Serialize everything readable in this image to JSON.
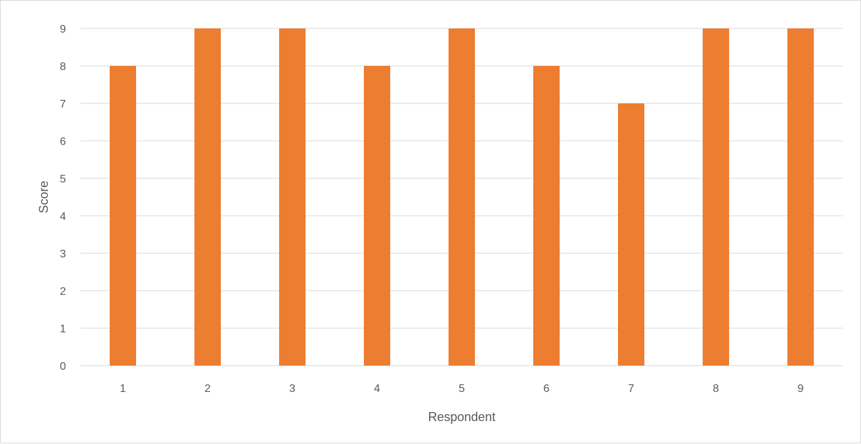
{
  "chart_data": {
    "type": "bar",
    "categories": [
      "1",
      "2",
      "3",
      "4",
      "5",
      "6",
      "7",
      "8",
      "9"
    ],
    "values": [
      8,
      9,
      9,
      8,
      9,
      8,
      7,
      9,
      9
    ],
    "title": "",
    "xlabel": "Respondent",
    "ylabel": "Score",
    "ylim": [
      0,
      9
    ],
    "yticks": [
      0,
      1,
      2,
      3,
      4,
      5,
      6,
      7,
      8,
      9
    ],
    "grid": true,
    "legend": "none",
    "colors": {
      "bar": "#ED7D31",
      "grid": "#D9D9D9",
      "text": "#595959"
    }
  }
}
